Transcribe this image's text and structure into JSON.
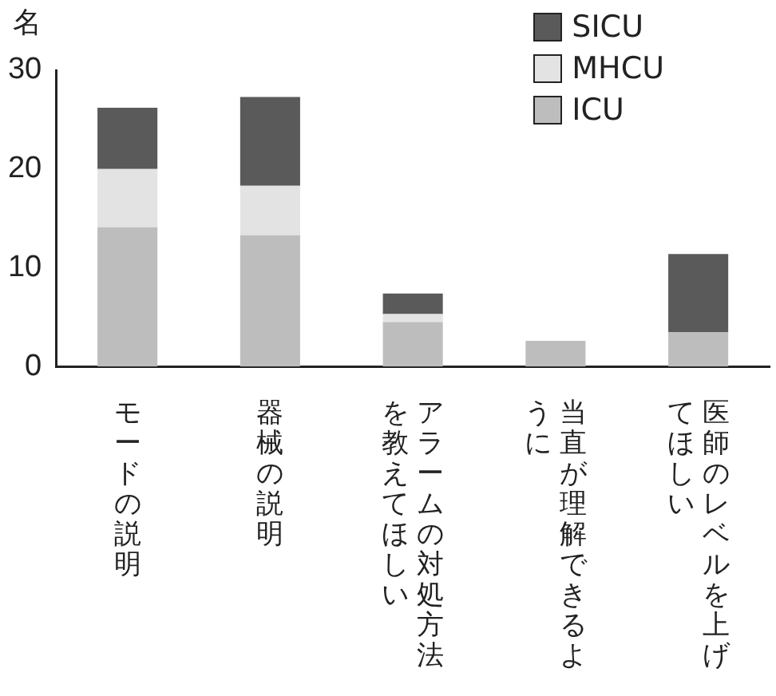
{
  "chart_data": {
    "type": "bar",
    "ylabel": "名",
    "stacked": true,
    "legend": "top right",
    "grid": false,
    "categories": [
      "モードの説明",
      "器械の説明",
      "アラームの対処方法を教えてほしい",
      "当直が理解できるように",
      "医師のレベルを上げてほしい"
    ],
    "ylim": [
      0,
      30
    ],
    "yticks": [
      0,
      10,
      20,
      30
    ],
    "series": [
      {
        "name": "ICU",
        "color": "#bdbdbd",
        "values": [
          14.1,
          13.3,
          4.5,
          2.6,
          3.5
        ]
      },
      {
        "name": "MHCU",
        "color": "#e3e3e3",
        "values": [
          5.9,
          5.0,
          0.8,
          null,
          null
        ]
      },
      {
        "name": "SICU",
        "color": "#5a5a5a",
        "values": [
          6.2,
          9.0,
          2.1,
          null,
          7.9
        ]
      }
    ]
  }
}
